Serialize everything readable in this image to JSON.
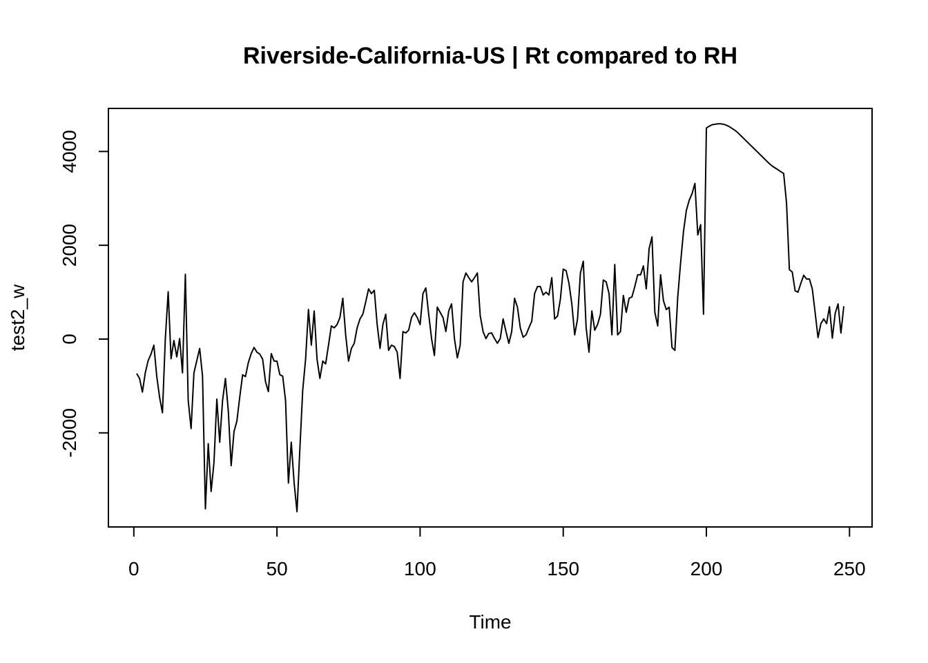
{
  "chart_data": {
    "type": "line",
    "title": "Riverside-California-US | Rt compared to RH",
    "xlabel": "Time",
    "ylabel": "test2_w",
    "xlim": [
      -8.88,
      257.88
    ],
    "ylim": [
      -4006,
      4918
    ],
    "xticks": [
      0,
      50,
      100,
      150,
      200,
      250
    ],
    "yticks": [
      -2000,
      0,
      2000,
      4000
    ],
    "color": "#000000",
    "x": [
      1,
      2,
      3,
      4,
      5,
      6,
      7,
      8,
      9,
      10,
      11,
      12,
      13,
      14,
      15,
      16,
      17,
      18,
      19,
      20,
      21,
      22,
      23,
      24,
      25,
      26,
      27,
      28,
      29,
      30,
      31,
      32,
      33,
      34,
      35,
      36,
      37,
      38,
      39,
      40,
      41,
      42,
      43,
      44,
      45,
      46,
      47,
      48,
      49,
      50,
      51,
      52,
      53,
      54,
      55,
      56,
      57,
      58,
      59,
      60,
      61,
      62,
      63,
      64,
      65,
      66,
      67,
      68,
      69,
      70,
      71,
      72,
      73,
      74,
      75,
      76,
      77,
      78,
      79,
      80,
      81,
      82,
      83,
      84,
      85,
      86,
      87,
      88,
      89,
      90,
      91,
      92,
      93,
      94,
      95,
      96,
      97,
      98,
      99,
      100,
      101,
      102,
      103,
      104,
      105,
      106,
      107,
      108,
      109,
      110,
      111,
      112,
      113,
      114,
      115,
      116,
      117,
      118,
      119,
      120,
      121,
      122,
      123,
      124,
      125,
      126,
      127,
      128,
      129,
      130,
      131,
      132,
      133,
      134,
      135,
      136,
      137,
      138,
      139,
      140,
      141,
      142,
      143,
      144,
      145,
      146,
      147,
      148,
      149,
      150,
      151,
      152,
      153,
      154,
      155,
      156,
      157,
      158,
      159,
      160,
      161,
      162,
      163,
      164,
      165,
      166,
      167,
      168,
      169,
      170,
      171,
      172,
      173,
      174,
      175,
      176,
      177,
      178,
      179,
      180,
      181,
      182,
      183,
      184,
      185,
      186,
      187,
      188,
      189,
      190,
      191,
      192,
      193,
      194,
      195,
      196,
      197,
      198,
      199,
      200,
      201,
      202,
      203,
      204,
      205,
      206,
      207,
      208,
      209,
      210,
      211,
      212,
      213,
      214,
      215,
      216,
      217,
      218,
      219,
      220,
      221,
      222,
      223,
      224,
      225,
      226,
      227,
      228,
      229,
      230,
      231,
      232,
      233,
      234,
      235,
      236,
      237,
      238,
      239,
      240,
      241,
      242,
      243,
      244,
      245,
      246,
      247,
      248
    ],
    "values": [
      -735,
      -840,
      -1130,
      -720,
      -460,
      -320,
      -130,
      -790,
      -1240,
      -1570,
      0,
      1010,
      -420,
      -30,
      -380,
      10,
      -720,
      1380,
      -1310,
      -1910,
      -720,
      -460,
      -200,
      -790,
      -3620,
      -2230,
      -3250,
      -2630,
      -1280,
      -2200,
      -1310,
      -840,
      -1530,
      -2700,
      -1970,
      -1750,
      -1240,
      -760,
      -800,
      -500,
      -310,
      -180,
      -280,
      -320,
      -430,
      -910,
      -1120,
      -310,
      -470,
      -470,
      -760,
      -790,
      -1310,
      -3070,
      -2200,
      -3070,
      -3680,
      -2340,
      -1090,
      -430,
      630,
      -130,
      600,
      -430,
      -840,
      -470,
      -530,
      -130,
      280,
      240,
      310,
      460,
      870,
      90,
      -470,
      -200,
      -90,
      240,
      430,
      530,
      790,
      1070,
      970,
      1040,
      310,
      -200,
      310,
      530,
      -240,
      -130,
      -160,
      -280,
      -840,
      160,
      130,
      190,
      460,
      560,
      460,
      310,
      970,
      1090,
      530,
      10,
      -350,
      680,
      570,
      460,
      160,
      600,
      750,
      10,
      -400,
      -130,
      1220,
      1410,
      1310,
      1220,
      1310,
      1410,
      500,
      160,
      10,
      120,
      130,
      10,
      -90,
      10,
      430,
      160,
      -90,
      160,
      870,
      680,
      240,
      40,
      90,
      240,
      380,
      970,
      1120,
      1120,
      940,
      1000,
      940,
      1310,
      430,
      490,
      850,
      1490,
      1460,
      1190,
      750,
      90,
      430,
      1410,
      1660,
      240,
      -280,
      600,
      190,
      310,
      530,
      1260,
      1220,
      970,
      90,
      1590,
      90,
      160,
      930,
      570,
      870,
      900,
      1120,
      1370,
      1370,
      1560,
      1070,
      1930,
      2180,
      570,
      280,
      1370,
      820,
      630,
      680,
      -180,
      -240,
      900,
      1630,
      2290,
      2740,
      2960,
      3100,
      3320,
      2220,
      2440,
      530,
      4500,
      4540,
      4570,
      4580,
      4590,
      4590,
      4580,
      4560,
      4530,
      4490,
      4450,
      4400,
      4340,
      4280,
      4220,
      4160,
      4100,
      4040,
      3980,
      3920,
      3860,
      3800,
      3740,
      3690,
      3650,
      3610,
      3570,
      3530,
      2900,
      1480,
      1430,
      1030,
      1000,
      1190,
      1360,
      1280,
      1280,
      1070,
      560,
      30,
      330,
      430,
      330,
      690,
      20,
      550,
      750,
      130,
      700
    ]
  }
}
